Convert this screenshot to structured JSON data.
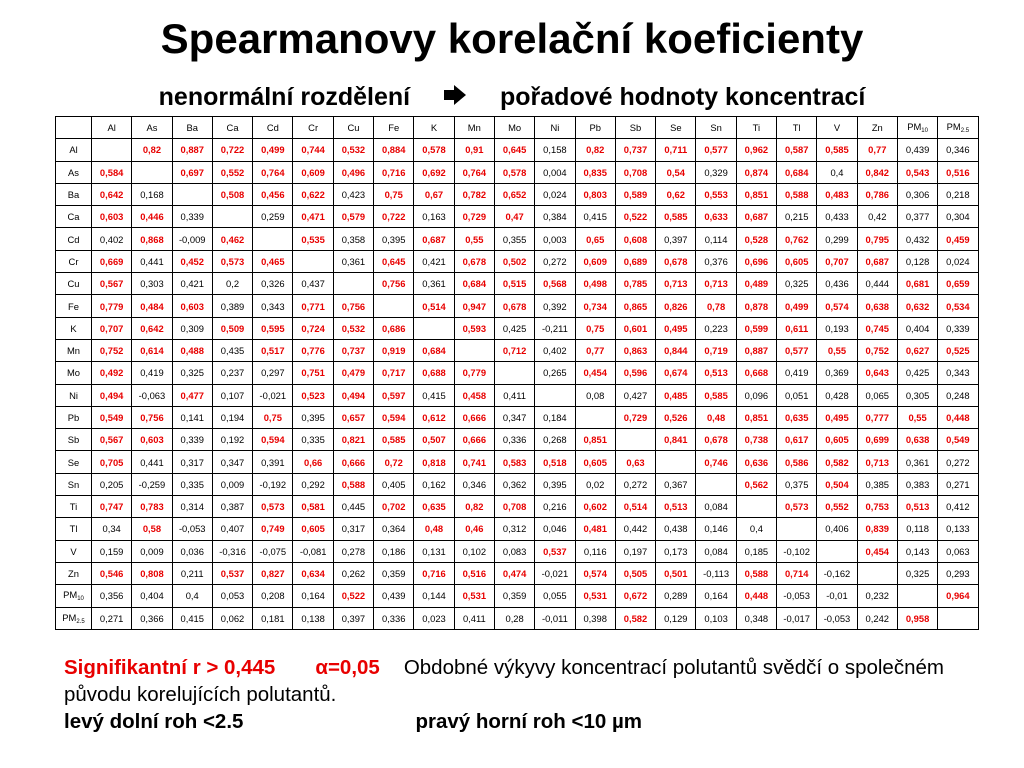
{
  "title": "Spearmanovy korelační koeficienty",
  "subtitle": {
    "left": "nenormální rozdělení",
    "arrow_icon": "right-arrow-icon",
    "right": "pořadové hodnoty koncentrací"
  },
  "table": {
    "labels": [
      {
        "t": "Al",
        "s": ""
      },
      {
        "t": "As",
        "s": ""
      },
      {
        "t": "Ba",
        "s": ""
      },
      {
        "t": "Ca",
        "s": ""
      },
      {
        "t": "Cd",
        "s": ""
      },
      {
        "t": "Cr",
        "s": ""
      },
      {
        "t": "Cu",
        "s": ""
      },
      {
        "t": "Fe",
        "s": ""
      },
      {
        "t": "K",
        "s": ""
      },
      {
        "t": "Mn",
        "s": ""
      },
      {
        "t": "Mo",
        "s": ""
      },
      {
        "t": "Ni",
        "s": ""
      },
      {
        "t": "Pb",
        "s": ""
      },
      {
        "t": "Sb",
        "s": ""
      },
      {
        "t": "Se",
        "s": ""
      },
      {
        "t": "Sn",
        "s": ""
      },
      {
        "t": "Ti",
        "s": ""
      },
      {
        "t": "Tl",
        "s": ""
      },
      {
        "t": "V",
        "s": ""
      },
      {
        "t": "Zn",
        "s": ""
      },
      {
        "t": "PM",
        "s": "10"
      },
      {
        "t": "PM",
        "s": "2.5"
      }
    ],
    "rows": [
      [
        "",
        "0,82",
        "0,887",
        "0,722",
        "0,499",
        "0,744",
        "0,532",
        "0,884",
        "0,578",
        "0,91",
        "0,645",
        "0,158",
        "0,82",
        "0,737",
        "0,711",
        "0,577",
        "0,962",
        "0,587",
        "0,585",
        "0,77",
        "0,439",
        "0,346"
      ],
      [
        "0,584",
        "",
        "0,697",
        "0,552",
        "0,764",
        "0,609",
        "0,496",
        "0,716",
        "0,692",
        "0,764",
        "0,578",
        "0,004",
        "0,835",
        "0,708",
        "0,54",
        "0,329",
        "0,874",
        "0,684",
        "0,4",
        "0,842",
        "0,543",
        "0,516"
      ],
      [
        "0,642",
        "0,168",
        "",
        "0,508",
        "0,456",
        "0,622",
        "0,423",
        "0,75",
        "0,67",
        "0,782",
        "0,652",
        "0,024",
        "0,803",
        "0,589",
        "0,62",
        "0,553",
        "0,851",
        "0,588",
        "0,483",
        "0,786",
        "0,306",
        "0,218"
      ],
      [
        "0,603",
        "0,446",
        "0,339",
        "",
        "0,259",
        "0,471",
        "0,579",
        "0,722",
        "0,163",
        "0,729",
        "0,47",
        "0,384",
        "0,415",
        "0,522",
        "0,585",
        "0,633",
        "0,687",
        "0,215",
        "0,433",
        "0,42",
        "0,377",
        "0,304"
      ],
      [
        "0,402",
        "0,868",
        "-0,009",
        "0,462",
        "",
        "0,535",
        "0,358",
        "0,395",
        "0,687",
        "0,55",
        "0,355",
        "0,003",
        "0,65",
        "0,608",
        "0,397",
        "0,114",
        "0,528",
        "0,762",
        "0,299",
        "0,795",
        "0,432",
        "0,459"
      ],
      [
        "0,669",
        "0,441",
        "0,452",
        "0,573",
        "0,465",
        "",
        "0,361",
        "0,645",
        "0,421",
        "0,678",
        "0,502",
        "0,272",
        "0,609",
        "0,689",
        "0,678",
        "0,376",
        "0,696",
        "0,605",
        "0,707",
        "0,687",
        "0,128",
        "0,024"
      ],
      [
        "0,567",
        "0,303",
        "0,421",
        "0,2",
        "0,326",
        "0,437",
        "",
        "0,756",
        "0,361",
        "0,684",
        "0,515",
        "0,568",
        "0,498",
        "0,785",
        "0,713",
        "0,713",
        "0,489",
        "0,325",
        "0,436",
        "0,444",
        "0,681",
        "0,659"
      ],
      [
        "0,779",
        "0,484",
        "0,603",
        "0,389",
        "0,343",
        "0,771",
        "0,756",
        "",
        "0,514",
        "0,947",
        "0,678",
        "0,392",
        "0,734",
        "0,865",
        "0,826",
        "0,78",
        "0,878",
        "0,499",
        "0,574",
        "0,638",
        "0,632",
        "0,534"
      ],
      [
        "0,707",
        "0,642",
        "0,309",
        "0,509",
        "0,595",
        "0,724",
        "0,532",
        "0,686",
        "",
        "0,593",
        "0,425",
        "-0,211",
        "0,75",
        "0,601",
        "0,495",
        "0,223",
        "0,599",
        "0,611",
        "0,193",
        "0,745",
        "0,404",
        "0,339"
      ],
      [
        "0,752",
        "0,614",
        "0,488",
        "0,435",
        "0,517",
        "0,776",
        "0,737",
        "0,919",
        "0,684",
        "",
        "0,712",
        "0,402",
        "0,77",
        "0,863",
        "0,844",
        "0,719",
        "0,887",
        "0,577",
        "0,55",
        "0,752",
        "0,627",
        "0,525"
      ],
      [
        "0,492",
        "0,419",
        "0,325",
        "0,237",
        "0,297",
        "0,751",
        "0,479",
        "0,717",
        "0,688",
        "0,779",
        "",
        "0,265",
        "0,454",
        "0,596",
        "0,674",
        "0,513",
        "0,668",
        "0,419",
        "0,369",
        "0,643",
        "0,425",
        "0,343"
      ],
      [
        "0,494",
        "-0,063",
        "0,477",
        "0,107",
        "-0,021",
        "0,523",
        "0,494",
        "0,597",
        "0,415",
        "0,458",
        "0,411",
        "",
        "0,08",
        "0,427",
        "0,485",
        "0,585",
        "0,096",
        "0,051",
        "0,428",
        "0,065",
        "0,305",
        "0,248"
      ],
      [
        "0,549",
        "0,756",
        "0,141",
        "0,194",
        "0,75",
        "0,395",
        "0,657",
        "0,594",
        "0,612",
        "0,666",
        "0,347",
        "0,184",
        "",
        "0,729",
        "0,526",
        "0,48",
        "0,851",
        "0,635",
        "0,495",
        "0,777",
        "0,55",
        "0,448"
      ],
      [
        "0,567",
        "0,603",
        "0,339",
        "0,192",
        "0,594",
        "0,335",
        "0,821",
        "0,585",
        "0,507",
        "0,666",
        "0,336",
        "0,268",
        "0,851",
        "",
        "0,841",
        "0,678",
        "0,738",
        "0,617",
        "0,605",
        "0,699",
        "0,638",
        "0,549"
      ],
      [
        "0,705",
        "0,441",
        "0,317",
        "0,347",
        "0,391",
        "0,66",
        "0,666",
        "0,72",
        "0,818",
        "0,741",
        "0,583",
        "0,518",
        "0,605",
        "0,63",
        "",
        "0,746",
        "0,636",
        "0,586",
        "0,582",
        "0,713",
        "0,361",
        "0,272"
      ],
      [
        "0,205",
        "-0,259",
        "0,335",
        "0,009",
        "-0,192",
        "0,292",
        "0,588",
        "0,405",
        "0,162",
        "0,346",
        "0,362",
        "0,395",
        "0,02",
        "0,272",
        "0,367",
        "",
        "0,562",
        "0,375",
        "0,504",
        "0,385",
        "0,383",
        "0,271"
      ],
      [
        "0,747",
        "0,783",
        "0,314",
        "0,387",
        "0,573",
        "0,581",
        "0,445",
        "0,702",
        "0,635",
        "0,82",
        "0,708",
        "0,216",
        "0,602",
        "0,514",
        "0,513",
        "0,084",
        "",
        "0,573",
        "0,552",
        "0,753",
        "0,513",
        "0,412"
      ],
      [
        "0,34",
        "0,58",
        "-0,053",
        "0,407",
        "0,749",
        "0,605",
        "0,317",
        "0,364",
        "0,48",
        "0,46",
        "0,312",
        "0,046",
        "0,481",
        "0,442",
        "0,438",
        "0,146",
        "0,4",
        "",
        "0,406",
        "0,839",
        "0,118",
        "0,133"
      ],
      [
        "0,159",
        "0,009",
        "0,036",
        "-0,316",
        "-0,075",
        "-0,081",
        "0,278",
        "0,186",
        "0,131",
        "0,102",
        "0,083",
        "0,537",
        "0,116",
        "0,197",
        "0,173",
        "0,084",
        "0,185",
        "-0,102",
        "",
        "0,454",
        "0,143",
        "0,063"
      ],
      [
        "0,546",
        "0,808",
        "0,211",
        "0,537",
        "0,827",
        "0,634",
        "0,262",
        "0,359",
        "0,716",
        "0,516",
        "0,474",
        "-0,021",
        "0,574",
        "0,505",
        "0,501",
        "-0,113",
        "0,588",
        "0,714",
        "-0,162",
        "",
        "0,325",
        "0,293"
      ],
      [
        "0,356",
        "0,404",
        "0,4",
        "0,053",
        "0,208",
        "0,164",
        "0,522",
        "0,439",
        "0,144",
        "0,531",
        "0,359",
        "0,055",
        "0,531",
        "0,672",
        "0,289",
        "0,164",
        "0,448",
        "-0,053",
        "-0,01",
        "0,232",
        "",
        "0,964"
      ],
      [
        "0,271",
        "0,366",
        "0,415",
        "0,062",
        "0,181",
        "0,138",
        "0,397",
        "0,336",
        "0,023",
        "0,411",
        "0,28",
        "-0,011",
        "0,398",
        "0,582",
        "0,129",
        "0,103",
        "0,348",
        "-0,017",
        "-0,053",
        "0,242",
        "0,958",
        ""
      ]
    ],
    "significant_color": "#e80000",
    "significance_threshold": 0.445
  },
  "footer": {
    "significance_label": "Signifikantní r > 0,445",
    "alpha_label": "α=0,05",
    "note": "Obdobné výkyvy koncentrací polutantů svědčí o společném původu korelujících polutantů.",
    "lower_left": "levý dolní roh <2.5",
    "upper_right": "pravý horní roh <10 µm"
  }
}
